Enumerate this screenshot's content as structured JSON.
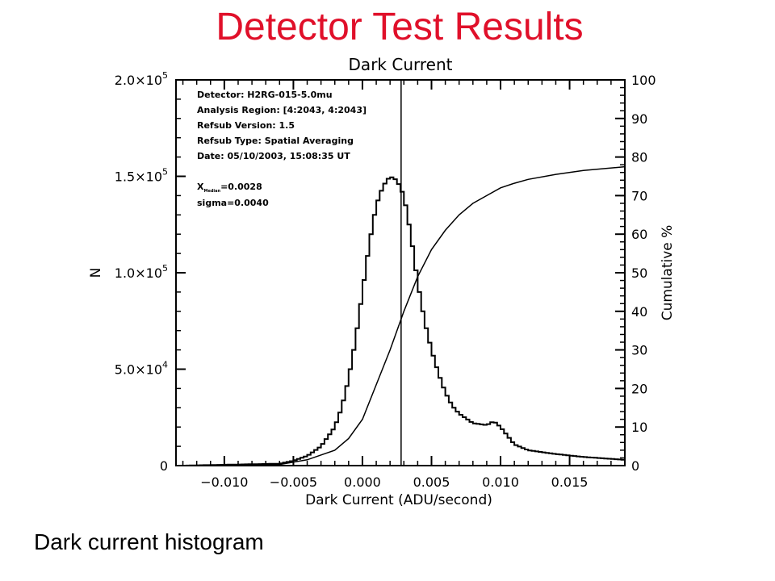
{
  "slide": {
    "title": "Detector Test Results",
    "caption": "Dark current histogram"
  },
  "chart_data": {
    "type": "line",
    "title": "Dark Current",
    "xlabel": "Dark Current (ADU/second)",
    "ylabel": "N",
    "y2label": "Cumulative %",
    "xlim": [
      -0.0135,
      0.019
    ],
    "ylim": [
      0,
      200000
    ],
    "y2lim": [
      0,
      100
    ],
    "x_ticks": [
      -0.01,
      -0.005,
      0.0,
      0.005,
      0.01,
      0.015
    ],
    "x_tick_labels": [
      "−0.010",
      "−0.005",
      "0.000",
      "0.005",
      "0.010",
      "0.015"
    ],
    "y_ticks": [
      0,
      50000,
      100000,
      150000,
      200000
    ],
    "y_tick_labels": [
      {
        "mant": "0",
        "exp": ""
      },
      {
        "mant": "5.0×10",
        "exp": "4"
      },
      {
        "mant": "1.0×10",
        "exp": "5"
      },
      {
        "mant": "1.5×10",
        "exp": "5"
      },
      {
        "mant": "2.0×10",
        "exp": "5"
      }
    ],
    "y2_ticks": [
      0,
      10,
      20,
      30,
      40,
      50,
      60,
      70,
      80,
      90,
      100
    ],
    "y2_tick_labels": [
      "0",
      "10",
      "20",
      "30",
      "40",
      "50",
      "60",
      "70",
      "80",
      "90",
      "100"
    ],
    "vline_x": 0.0028,
    "info_lines": [
      "Detector: H2RG-015-5.0mu",
      "Analysis Region: [4:2043, 4:2043]",
      "Refsub Version: 1.5",
      "Refsub Type: Spatial Averaging",
      "Date: 05/10/2003, 15:08:35 UT"
    ],
    "stat_median_label": "X",
    "stat_median_sub": "Median",
    "stat_median_value": "=0.0028",
    "stat_sigma": "sigma=0.0040",
    "series": [
      {
        "axis": "left",
        "kind": "histogram",
        "x": [
          -0.013,
          -0.006,
          -0.005,
          -0.004,
          -0.003,
          -0.002,
          -0.0015,
          -0.001,
          -0.0005,
          0.0,
          0.0005,
          0.001,
          0.0015,
          0.002,
          0.0025,
          0.003,
          0.0035,
          0.004,
          0.0045,
          0.005,
          0.0055,
          0.006,
          0.0065,
          0.007,
          0.008,
          0.009,
          0.0095,
          0.01,
          0.011,
          0.012,
          0.014,
          0.016,
          0.019
        ],
        "values": [
          0,
          1000,
          2500,
          5000,
          10000,
          20000,
          30000,
          45000,
          65000,
          90000,
          115000,
          135000,
          145000,
          150000,
          148000,
          140000,
          120000,
          95000,
          75000,
          60000,
          48000,
          38000,
          31000,
          27000,
          22000,
          21000,
          23000,
          20000,
          11000,
          8000,
          6000,
          4500,
          3000
        ]
      },
      {
        "axis": "right",
        "kind": "line",
        "x": [
          -0.013,
          -0.006,
          -0.004,
          -0.002,
          -0.001,
          0.0,
          0.001,
          0.002,
          0.003,
          0.004,
          0.005,
          0.006,
          0.007,
          0.008,
          0.009,
          0.01,
          0.011,
          0.012,
          0.014,
          0.016,
          0.019
        ],
        "values": [
          0,
          0.3,
          1.5,
          4,
          7,
          12,
          21,
          30,
          40,
          49,
          56,
          61,
          65,
          68,
          70,
          72,
          73.2,
          74.2,
          75.5,
          76.5,
          77.5
        ]
      }
    ]
  }
}
